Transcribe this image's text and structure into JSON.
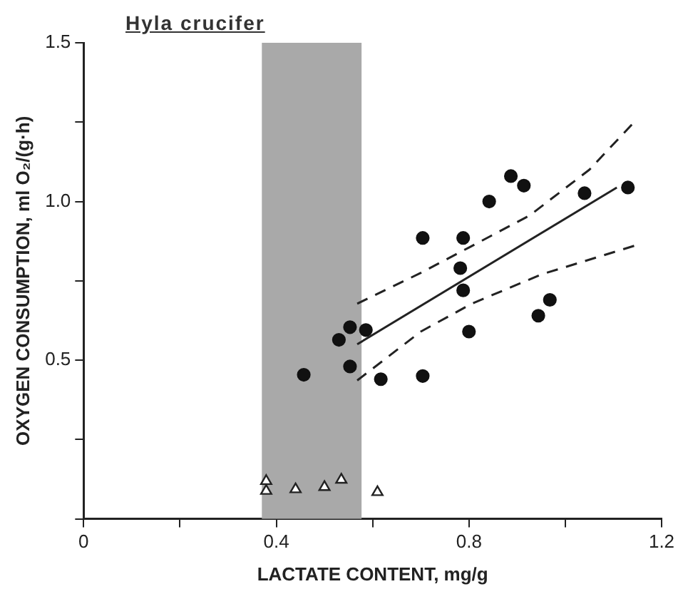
{
  "chart_data": {
    "type": "scatter",
    "title": "Hyla crucifer",
    "xlabel": "LACTATE CONTENT, mg/g",
    "ylabel": "OXYGEN CONSUMPTION, ml O₂/(g·h)",
    "xlim": [
      0,
      1.2
    ],
    "ylim": [
      0,
      1.5
    ],
    "xticks": [
      0,
      {
        "value": 0.2,
        "label": null
      },
      0.4,
      {
        "value": 0.6,
        "label": null
      },
      0.8,
      {
        "value": 1.0,
        "label": null
      },
      1.2
    ],
    "yticks": [
      {
        "value": 0,
        "label": null
      },
      {
        "value": 0.25,
        "label": null
      },
      0.5,
      {
        "value": 0.75,
        "label": null
      },
      {
        "value": 1.0,
        "label": "1.0"
      },
      {
        "value": 1.25,
        "label": null
      },
      {
        "value": 1.5,
        "label": "1.5"
      }
    ],
    "grid": false,
    "legend": false,
    "bands": [
      {
        "axis": "x",
        "from": 0.37,
        "to": 0.577,
        "color": "#a9a9a9"
      }
    ],
    "series": [
      {
        "type": "scatter",
        "marker": "circle",
        "color": "#111111",
        "x": [
          0.457,
          0.53,
          0.553,
          0.553,
          0.586,
          0.617,
          0.704,
          0.704,
          0.788,
          0.782,
          0.788,
          0.8,
          0.842,
          0.887,
          0.914,
          0.944,
          0.968,
          1.04,
          1.13
        ],
        "values": [
          0.454,
          0.564,
          0.604,
          0.48,
          0.595,
          0.44,
          0.885,
          0.45,
          0.885,
          0.79,
          0.72,
          0.59,
          1.0,
          1.08,
          1.05,
          0.64,
          0.69,
          1.026,
          1.044
        ]
      },
      {
        "type": "scatter",
        "marker": "triangle",
        "color": "#222222",
        "x": [
          0.379,
          0.379,
          0.44,
          0.5,
          0.535,
          0.61
        ],
        "values": [
          0.119,
          0.088,
          0.093,
          0.1,
          0.123,
          0.084
        ]
      },
      {
        "type": "line",
        "marker": "none",
        "line_style": "solid",
        "color": "#222222",
        "x": [
          0.568,
          1.107
        ],
        "values": [
          0.55,
          1.044
        ]
      },
      {
        "type": "line",
        "marker": "none",
        "line_style": "dashed",
        "color": "#222222",
        "x": [
          0.568,
          0.7,
          0.8,
          0.926,
          1.05,
          1.143
        ],
        "values": [
          0.678,
          0.775,
          0.855,
          0.956,
          1.1,
          1.25
        ]
      },
      {
        "type": "line",
        "marker": "none",
        "line_style": "dashed",
        "color": "#222222",
        "x": [
          0.568,
          0.7,
          0.806,
          0.95,
          1.149
        ],
        "values": [
          0.436,
          0.59,
          0.678,
          0.77,
          0.863
        ]
      }
    ]
  }
}
